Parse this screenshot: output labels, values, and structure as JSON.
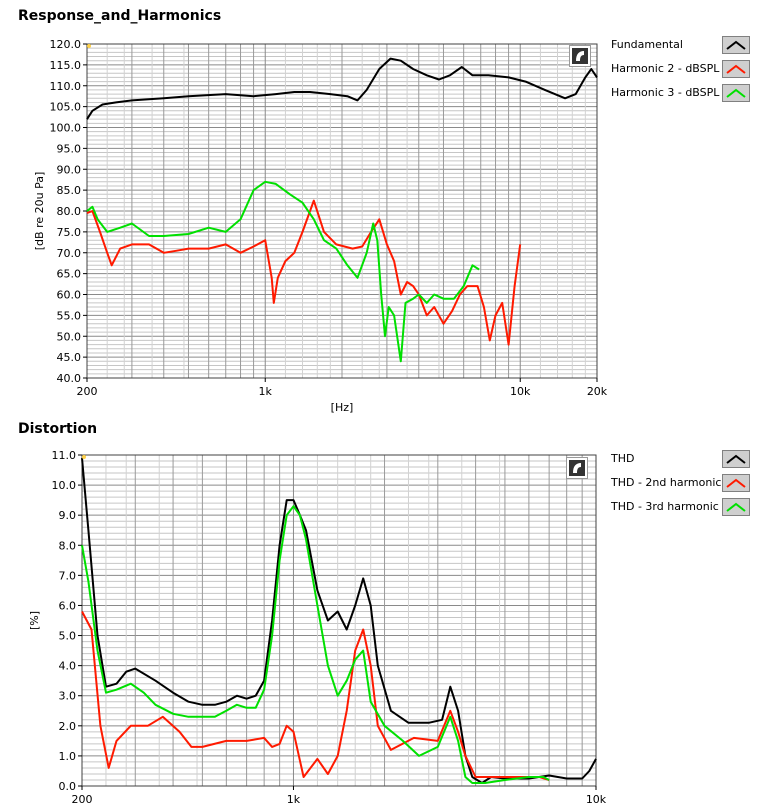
{
  "chart_data": [
    {
      "type": "line",
      "title": "Response_and_Harmonics",
      "xlabel": "[Hz]",
      "ylabel": "[dB re 20u Pa]",
      "xscale": "log",
      "xlim": [
        200,
        20000
      ],
      "ylim": [
        40,
        120
      ],
      "x_ticks": [
        "200",
        "1k",
        "10k",
        "20k"
      ],
      "y_ticks": [
        "120.0",
        "115.0",
        "110.0",
        "105.0",
        "100.0",
        "95.0",
        "90.0",
        "85.0",
        "80.0",
        "75.0",
        "70.0",
        "65.0",
        "60.0",
        "55.0",
        "50.0",
        "45.0",
        "40.0"
      ],
      "legend_placement": "right",
      "series": [
        {
          "name": "Fundamental",
          "color": "#000000",
          "points": [
            [
              200,
              102
            ],
            [
              210,
              104
            ],
            [
              230,
              105.5
            ],
            [
              260,
              106
            ],
            [
              300,
              106.5
            ],
            [
              400,
              107
            ],
            [
              500,
              107.5
            ],
            [
              700,
              108
            ],
            [
              900,
              107.5
            ],
            [
              1100,
              108
            ],
            [
              1300,
              108.5
            ],
            [
              1500,
              108.5
            ],
            [
              1800,
              108
            ],
            [
              2100,
              107.5
            ],
            [
              2300,
              106.5
            ],
            [
              2500,
              109
            ],
            [
              2800,
              114
            ],
            [
              3100,
              116.5
            ],
            [
              3400,
              116
            ],
            [
              3800,
              114
            ],
            [
              4300,
              112.5
            ],
            [
              4800,
              111.5
            ],
            [
              5300,
              112.5
            ],
            [
              5900,
              114.5
            ],
            [
              6500,
              112.5
            ],
            [
              7500,
              112.5
            ],
            [
              9000,
              112
            ],
            [
              10500,
              111
            ],
            [
              12500,
              109
            ],
            [
              15000,
              107
            ],
            [
              16500,
              108
            ],
            [
              18000,
              112
            ],
            [
              19000,
              114
            ],
            [
              20000,
              112
            ]
          ]
        },
        {
          "name": "Harmonic 2 - dBSPL",
          "color": "#ff1a00",
          "points": [
            [
              200,
              79.5
            ],
            [
              210,
              80
            ],
            [
              225,
              75
            ],
            [
              240,
              70
            ],
            [
              250,
              67
            ],
            [
              270,
              71
            ],
            [
              300,
              72
            ],
            [
              350,
              72
            ],
            [
              400,
              70
            ],
            [
              450,
              70.5
            ],
            [
              500,
              71
            ],
            [
              600,
              71
            ],
            [
              700,
              72
            ],
            [
              800,
              70
            ],
            [
              900,
              71.5
            ],
            [
              1000,
              73
            ],
            [
              1060,
              64
            ],
            [
              1080,
              58
            ],
            [
              1120,
              64
            ],
            [
              1200,
              68
            ],
            [
              1300,
              70
            ],
            [
              1400,
              75
            ],
            [
              1550,
              82.5
            ],
            [
              1700,
              75
            ],
            [
              1900,
              72
            ],
            [
              2200,
              71
            ],
            [
              2400,
              71.5
            ],
            [
              2600,
              75
            ],
            [
              2800,
              78
            ],
            [
              3000,
              72
            ],
            [
              3200,
              68
            ],
            [
              3400,
              60
            ],
            [
              3600,
              63
            ],
            [
              3800,
              62
            ],
            [
              4000,
              60
            ],
            [
              4300,
              55
            ],
            [
              4600,
              57
            ],
            [
              5000,
              53
            ],
            [
              5400,
              56
            ],
            [
              5800,
              60
            ],
            [
              6200,
              62
            ],
            [
              6800,
              62
            ],
            [
              7200,
              57
            ],
            [
              7600,
              49
            ],
            [
              8000,
              55
            ],
            [
              8500,
              58
            ],
            [
              9000,
              48
            ],
            [
              9500,
              62
            ],
            [
              10000,
              72
            ]
          ]
        },
        {
          "name": "Harmonic 3 - dBSPL",
          "color": "#00e000",
          "points": [
            [
              200,
              80
            ],
            [
              210,
              81
            ],
            [
              220,
              78
            ],
            [
              240,
              75
            ],
            [
              270,
              76
            ],
            [
              300,
              77
            ],
            [
              350,
              74
            ],
            [
              400,
              74
            ],
            [
              500,
              74.5
            ],
            [
              600,
              76
            ],
            [
              700,
              75
            ],
            [
              800,
              78
            ],
            [
              900,
              85
            ],
            [
              1000,
              87
            ],
            [
              1100,
              86.5
            ],
            [
              1250,
              84
            ],
            [
              1400,
              82
            ],
            [
              1550,
              78
            ],
            [
              1700,
              73
            ],
            [
              1900,
              71
            ],
            [
              2100,
              67
            ],
            [
              2300,
              64
            ],
            [
              2500,
              70
            ],
            [
              2650,
              77
            ],
            [
              2750,
              73
            ],
            [
              2850,
              60
            ],
            [
              2950,
              50
            ],
            [
              3050,
              57
            ],
            [
              3200,
              55
            ],
            [
              3400,
              44
            ],
            [
              3550,
              58
            ],
            [
              3800,
              59
            ],
            [
              4000,
              60
            ],
            [
              4300,
              58
            ],
            [
              4600,
              60
            ],
            [
              5000,
              59
            ],
            [
              5500,
              59
            ],
            [
              6000,
              62
            ],
            [
              6500,
              67
            ],
            [
              6900,
              66
            ]
          ]
        }
      ]
    },
    {
      "type": "line",
      "title": "Distortion",
      "xlabel": "[Hz]",
      "ylabel": "[%]",
      "xscale": "log",
      "xlim": [
        200,
        10000
      ],
      "ylim": [
        0,
        11
      ],
      "x_ticks": [
        "200",
        "1k",
        "10k"
      ],
      "y_ticks": [
        "11.0",
        "10.0",
        "9.0",
        "8.0",
        "7.0",
        "6.0",
        "5.0",
        "4.0",
        "3.0",
        "2.0",
        "1.0",
        "0.0"
      ],
      "legend_placement": "right",
      "series": [
        {
          "name": "THD",
          "color": "#000000",
          "points": [
            [
              200,
              10.9
            ],
            [
              210,
              8.5
            ],
            [
              225,
              5
            ],
            [
              240,
              3.3
            ],
            [
              260,
              3.4
            ],
            [
              280,
              3.8
            ],
            [
              300,
              3.9
            ],
            [
              350,
              3.5
            ],
            [
              400,
              3.1
            ],
            [
              450,
              2.8
            ],
            [
              500,
              2.7
            ],
            [
              550,
              2.7
            ],
            [
              600,
              2.8
            ],
            [
              650,
              3.0
            ],
            [
              700,
              2.9
            ],
            [
              750,
              3.0
            ],
            [
              800,
              3.5
            ],
            [
              850,
              5.5
            ],
            [
              900,
              8
            ],
            [
              950,
              9.5
            ],
            [
              1000,
              9.5
            ],
            [
              1050,
              9.0
            ],
            [
              1100,
              8.5
            ],
            [
              1200,
              6.5
            ],
            [
              1300,
              5.5
            ],
            [
              1400,
              5.8
            ],
            [
              1500,
              5.2
            ],
            [
              1600,
              6.0
            ],
            [
              1700,
              6.9
            ],
            [
              1800,
              6.0
            ],
            [
              1900,
              4.0
            ],
            [
              2100,
              2.5
            ],
            [
              2400,
              2.1
            ],
            [
              2800,
              2.1
            ],
            [
              3100,
              2.2
            ],
            [
              3300,
              3.3
            ],
            [
              3500,
              2.5
            ],
            [
              3700,
              1.0
            ],
            [
              3900,
              0.3
            ],
            [
              4200,
              0.1
            ],
            [
              4500,
              0.3
            ],
            [
              5000,
              0.25
            ],
            [
              6000,
              0.25
            ],
            [
              7000,
              0.35
            ],
            [
              8000,
              0.25
            ],
            [
              9000,
              0.25
            ],
            [
              9500,
              0.5
            ],
            [
              10000,
              0.9
            ]
          ]
        },
        {
          "name": "THD - 2nd harmonic",
          "color": "#ff1a00",
          "points": [
            [
              200,
              5.8
            ],
            [
              215,
              5.2
            ],
            [
              230,
              2
            ],
            [
              245,
              0.6
            ],
            [
              260,
              1.5
            ],
            [
              290,
              2.0
            ],
            [
              330,
              2.0
            ],
            [
              370,
              2.3
            ],
            [
              420,
              1.8
            ],
            [
              460,
              1.3
            ],
            [
              500,
              1.3
            ],
            [
              600,
              1.5
            ],
            [
              700,
              1.5
            ],
            [
              800,
              1.6
            ],
            [
              850,
              1.3
            ],
            [
              900,
              1.4
            ],
            [
              950,
              2.0
            ],
            [
              1000,
              1.8
            ],
            [
              1080,
              0.3
            ],
            [
              1200,
              0.9
            ],
            [
              1300,
              0.4
            ],
            [
              1400,
              1.0
            ],
            [
              1500,
              2.5
            ],
            [
              1600,
              4.5
            ],
            [
              1700,
              5.2
            ],
            [
              1800,
              4.0
            ],
            [
              1900,
              2.0
            ],
            [
              2100,
              1.2
            ],
            [
              2500,
              1.6
            ],
            [
              3000,
              1.5
            ],
            [
              3300,
              2.5
            ],
            [
              3500,
              1.8
            ],
            [
              3700,
              1.0
            ],
            [
              4000,
              0.3
            ],
            [
              4500,
              0.3
            ],
            [
              5500,
              0.3
            ],
            [
              6500,
              0.3
            ],
            [
              7000,
              0.2
            ]
          ]
        },
        {
          "name": "THD - 3rd harmonic",
          "color": "#00e000",
          "points": [
            [
              200,
              8.0
            ],
            [
              210,
              6.8
            ],
            [
              225,
              4.5
            ],
            [
              240,
              3.1
            ],
            [
              260,
              3.2
            ],
            [
              290,
              3.4
            ],
            [
              320,
              3.1
            ],
            [
              350,
              2.7
            ],
            [
              400,
              2.4
            ],
            [
              450,
              2.3
            ],
            [
              500,
              2.3
            ],
            [
              550,
              2.3
            ],
            [
              600,
              2.5
            ],
            [
              650,
              2.7
            ],
            [
              700,
              2.6
            ],
            [
              750,
              2.6
            ],
            [
              800,
              3.2
            ],
            [
              850,
              5.0
            ],
            [
              900,
              7.5
            ],
            [
              950,
              9.0
            ],
            [
              1000,
              9.3
            ],
            [
              1050,
              9.0
            ],
            [
              1100,
              8.2
            ],
            [
              1200,
              6.0
            ],
            [
              1300,
              4.0
            ],
            [
              1400,
              3.0
            ],
            [
              1500,
              3.5
            ],
            [
              1600,
              4.2
            ],
            [
              1700,
              4.5
            ],
            [
              1800,
              2.8
            ],
            [
              2000,
              2.0
            ],
            [
              2300,
              1.5
            ],
            [
              2600,
              1.0
            ],
            [
              3000,
              1.3
            ],
            [
              3300,
              2.3
            ],
            [
              3500,
              1.5
            ],
            [
              3700,
              0.3
            ],
            [
              3900,
              0.1
            ],
            [
              4300,
              0.1
            ],
            [
              5000,
              0.2
            ],
            [
              6000,
              0.3
            ],
            [
              6700,
              0.3
            ],
            [
              7000,
              0.2
            ]
          ]
        }
      ]
    }
  ]
}
